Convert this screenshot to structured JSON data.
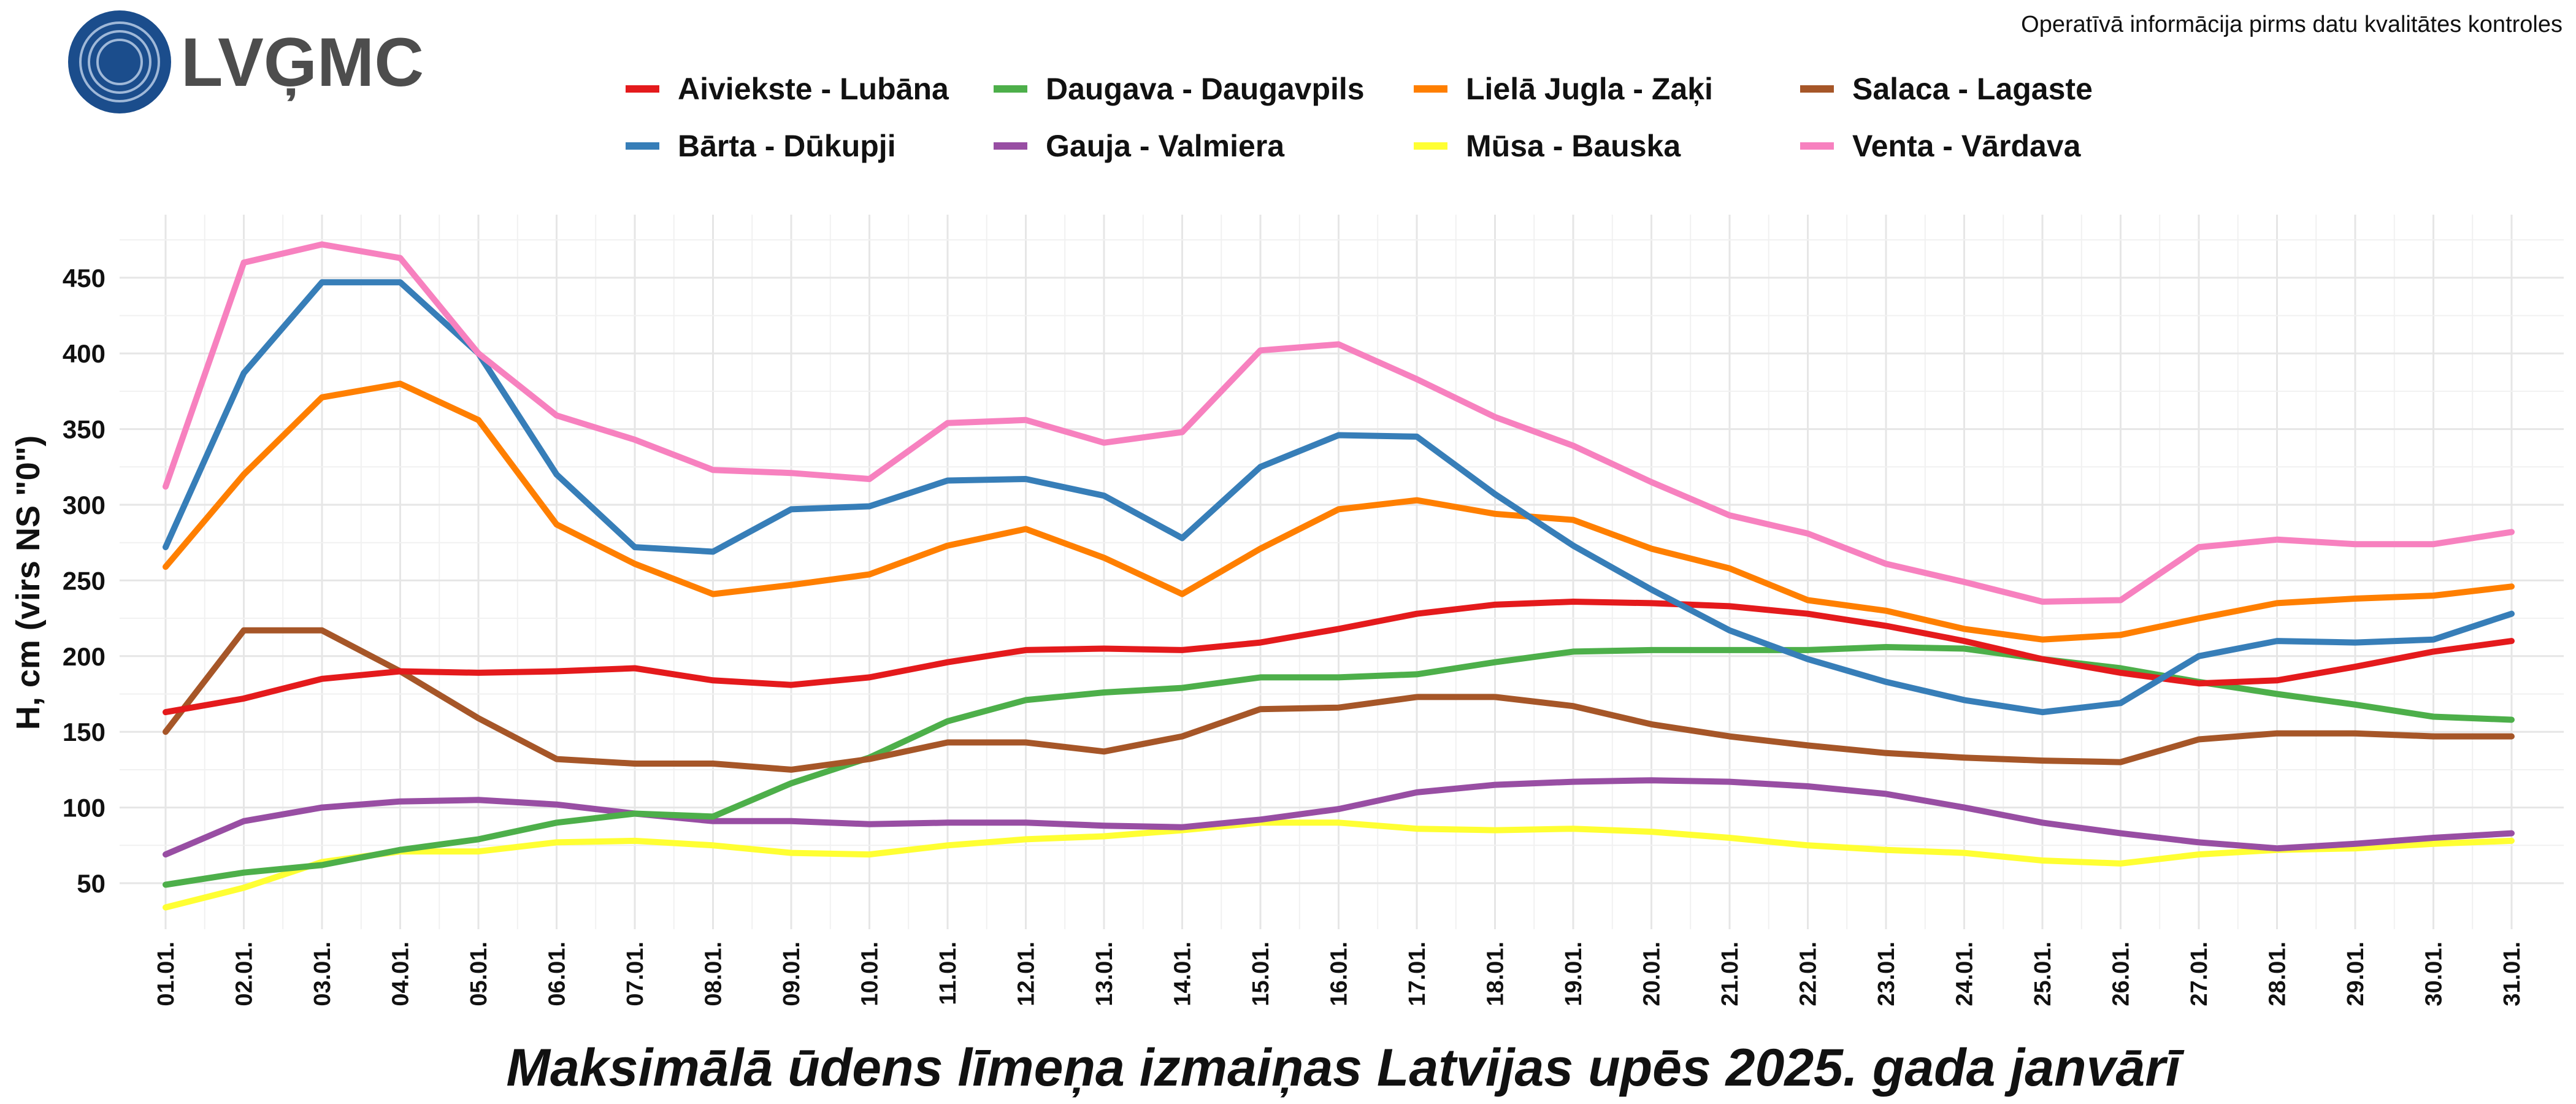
{
  "header": {
    "logo_text": "LVĢMC",
    "note": "Operatīvā informācija pirms datu kvalitātes kontroles"
  },
  "chart_data": {
    "type": "line",
    "title": "Maksimālā ūdens līmeņa izmaiņas Latvijas upēs 2025. gada janvārī",
    "xlabel": "",
    "ylabel": "H, cm (virs NS \"0\")",
    "ylim": [
      20,
      480
    ],
    "yticks": [
      50,
      100,
      150,
      200,
      250,
      300,
      350,
      400,
      450
    ],
    "grid": true,
    "legend_position": "top",
    "categories": [
      "01.01.",
      "02.01.",
      "03.01.",
      "04.01.",
      "05.01.",
      "06.01.",
      "07.01.",
      "08.01.",
      "09.01.",
      "10.01.",
      "11.01.",
      "12.01.",
      "13.01.",
      "14.01.",
      "15.01.",
      "16.01.",
      "17.01.",
      "18.01.",
      "19.01.",
      "20.01.",
      "21.01.",
      "22.01.",
      "23.01.",
      "24.01.",
      "25.01.",
      "26.01.",
      "27.01.",
      "28.01.",
      "29.01.",
      "30.01.",
      "31.01."
    ],
    "series": [
      {
        "name": "Aiviekste - Lubāna",
        "color": "#e41a1c",
        "values": [
          163,
          172,
          185,
          190,
          189,
          190,
          192,
          184,
          181,
          186,
          196,
          204,
          205,
          204,
          209,
          218,
          228,
          234,
          236,
          235,
          233,
          228,
          220,
          210,
          198,
          189,
          182,
          184,
          193,
          203,
          210
        ]
      },
      {
        "name": "Bārta - Dūkupji",
        "color": "#377eb8",
        "values": [
          272,
          387,
          447,
          447,
          400,
          320,
          272,
          269,
          297,
          299,
          316,
          317,
          306,
          278,
          325,
          346,
          345,
          307,
          273,
          244,
          217,
          198,
          183,
          171,
          163,
          169,
          200,
          210,
          209,
          211,
          228
        ]
      },
      {
        "name": "Daugava - Daugavpils",
        "color": "#4daf4a",
        "values": [
          49,
          57,
          62,
          72,
          79,
          90,
          96,
          94,
          116,
          133,
          157,
          171,
          176,
          179,
          186,
          186,
          188,
          196,
          203,
          204,
          204,
          204,
          206,
          205,
          198,
          192,
          183,
          175,
          168,
          160,
          158
        ]
      },
      {
        "name": "Gauja - Valmiera",
        "color": "#984ea3",
        "values": [
          69,
          91,
          100,
          104,
          105,
          102,
          96,
          91,
          91,
          89,
          90,
          90,
          88,
          87,
          92,
          99,
          110,
          115,
          117,
          118,
          117,
          114,
          109,
          100,
          90,
          83,
          77,
          73,
          76,
          80,
          83
        ]
      },
      {
        "name": "Lielā Jugla - Zaķi",
        "color": "#ff7f00",
        "values": [
          259,
          320,
          371,
          380,
          356,
          287,
          261,
          241,
          247,
          254,
          273,
          284,
          265,
          241,
          271,
          297,
          303,
          294,
          290,
          271,
          258,
          237,
          230,
          218,
          211,
          214,
          225,
          235,
          238,
          240,
          246
        ]
      },
      {
        "name": "Mūsa - Bauska",
        "color": "#ffff33",
        "values": [
          34,
          47,
          64,
          71,
          71,
          77,
          78,
          75,
          70,
          69,
          75,
          79,
          81,
          85,
          90,
          90,
          86,
          85,
          86,
          84,
          80,
          75,
          72,
          70,
          65,
          63,
          69,
          72,
          73,
          76,
          78
        ]
      },
      {
        "name": "Salaca - Lagaste",
        "color": "#a65628",
        "values": [
          150,
          217,
          217,
          190,
          159,
          132,
          129,
          129,
          125,
          132,
          143,
          143,
          137,
          147,
          165,
          166,
          173,
          173,
          167,
          155,
          147,
          141,
          136,
          133,
          131,
          130,
          145,
          149,
          149,
          147,
          147
        ]
      },
      {
        "name": "Venta - Vārdava",
        "color": "#f781bf",
        "values": [
          312,
          460,
          472,
          463,
          400,
          359,
          343,
          323,
          321,
          317,
          354,
          356,
          341,
          348,
          402,
          406,
          383,
          358,
          339,
          315,
          293,
          281,
          261,
          249,
          236,
          237,
          272,
          277,
          274,
          274,
          282
        ]
      }
    ]
  }
}
